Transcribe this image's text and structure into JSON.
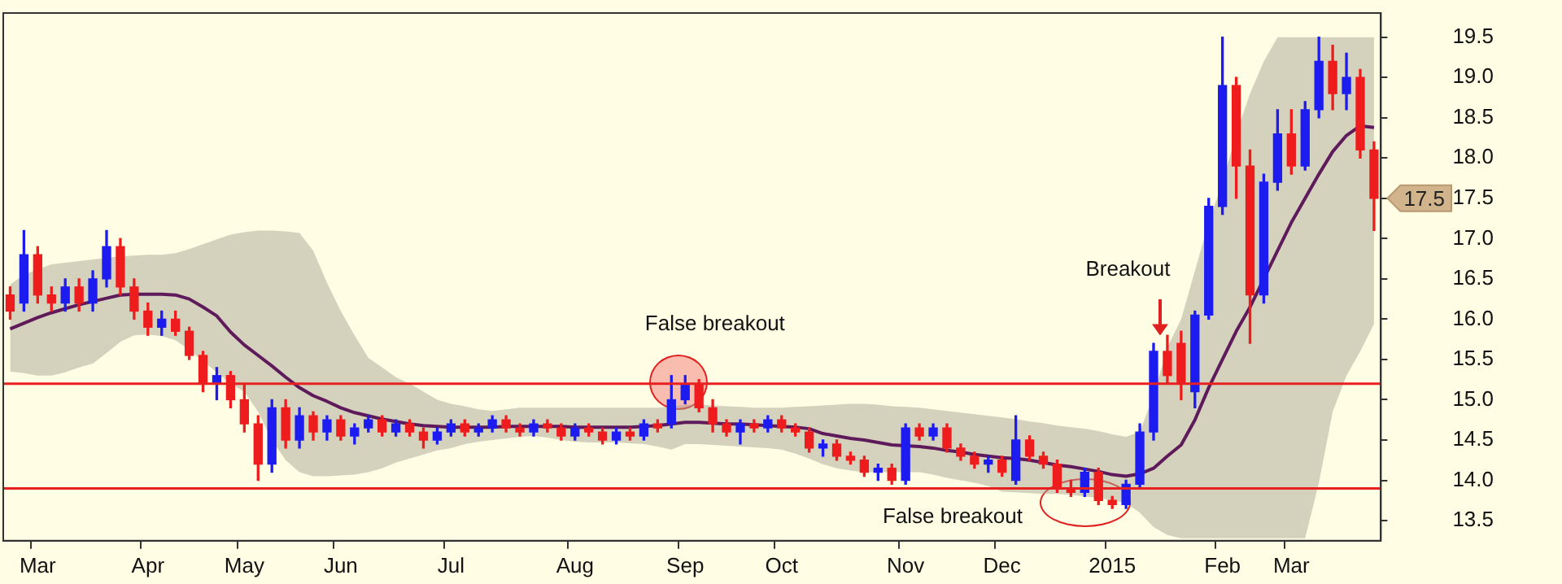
{
  "chart_data": {
    "type": "candlestick",
    "categories": [
      null,
      null,
      "Mar",
      null,
      null,
      null,
      null,
      null,
      null,
      null,
      "Apr",
      null,
      null,
      null,
      null,
      null,
      null,
      "May",
      null,
      null,
      null,
      null,
      null,
      null,
      "Jun",
      null,
      null,
      null,
      null,
      null,
      null,
      null,
      "Jul",
      null,
      null,
      null,
      null,
      null,
      null,
      null,
      null,
      "Aug",
      null,
      null,
      null,
      null,
      null,
      null,
      null,
      "Sep",
      null,
      null,
      null,
      null,
      null,
      null,
      "Oct",
      null,
      null,
      null,
      null,
      null,
      null,
      null,
      null,
      "Nov",
      null,
      null,
      null,
      null,
      null,
      null,
      "Dec",
      null,
      null,
      null,
      null,
      null,
      null,
      null,
      "2015",
      null,
      null,
      null,
      null,
      null,
      null,
      null,
      "Feb",
      null,
      null,
      null,
      null,
      "Mar",
      null,
      null,
      null,
      null,
      null,
      null
    ],
    "ohlc": [
      [
        16.3,
        16.4,
        16.0,
        16.1
      ],
      [
        16.2,
        17.1,
        16.1,
        16.8
      ],
      [
        16.8,
        16.9,
        16.2,
        16.3
      ],
      [
        16.3,
        16.4,
        16.1,
        16.2
      ],
      [
        16.2,
        16.5,
        16.1,
        16.4
      ],
      [
        16.4,
        16.5,
        16.1,
        16.2
      ],
      [
        16.2,
        16.6,
        16.1,
        16.5
      ],
      [
        16.5,
        17.1,
        16.4,
        16.9
      ],
      [
        16.9,
        17.0,
        16.3,
        16.4
      ],
      [
        16.4,
        16.5,
        16.0,
        16.1
      ],
      [
        16.1,
        16.2,
        15.8,
        15.9
      ],
      [
        15.9,
        16.1,
        15.8,
        16.0
      ],
      [
        16.0,
        16.1,
        15.8,
        15.85
      ],
      [
        15.85,
        15.9,
        15.5,
        15.55
      ],
      [
        15.55,
        15.6,
        15.1,
        15.2
      ],
      [
        15.2,
        15.4,
        15.0,
        15.3
      ],
      [
        15.3,
        15.35,
        14.9,
        15.0
      ],
      [
        15.0,
        15.2,
        14.6,
        14.7
      ],
      [
        14.7,
        14.8,
        14.0,
        14.2
      ],
      [
        14.2,
        15.0,
        14.1,
        14.9
      ],
      [
        14.9,
        15.0,
        14.4,
        14.5
      ],
      [
        14.5,
        14.9,
        14.4,
        14.8
      ],
      [
        14.8,
        14.85,
        14.5,
        14.6
      ],
      [
        14.6,
        14.8,
        14.5,
        14.75
      ],
      [
        14.75,
        14.8,
        14.5,
        14.55
      ],
      [
        14.55,
        14.7,
        14.45,
        14.65
      ],
      [
        14.65,
        14.8,
        14.6,
        14.75
      ],
      [
        14.75,
        14.8,
        14.55,
        14.6
      ],
      [
        14.6,
        14.75,
        14.55,
        14.7
      ],
      [
        14.7,
        14.75,
        14.55,
        14.6
      ],
      [
        14.6,
        14.65,
        14.4,
        14.5
      ],
      [
        14.5,
        14.65,
        14.45,
        14.6
      ],
      [
        14.6,
        14.75,
        14.55,
        14.7
      ],
      [
        14.7,
        14.75,
        14.55,
        14.6
      ],
      [
        14.6,
        14.7,
        14.55,
        14.65
      ],
      [
        14.65,
        14.8,
        14.6,
        14.75
      ],
      [
        14.75,
        14.8,
        14.6,
        14.65
      ],
      [
        14.65,
        14.7,
        14.55,
        14.6
      ],
      [
        14.6,
        14.75,
        14.55,
        14.7
      ],
      [
        14.7,
        14.75,
        14.6,
        14.65
      ],
      [
        14.65,
        14.7,
        14.5,
        14.55
      ],
      [
        14.55,
        14.7,
        14.5,
        14.65
      ],
      [
        14.65,
        14.7,
        14.55,
        14.6
      ],
      [
        14.6,
        14.65,
        14.45,
        14.5
      ],
      [
        14.5,
        14.65,
        14.45,
        14.6
      ],
      [
        14.6,
        14.65,
        14.5,
        14.55
      ],
      [
        14.55,
        14.75,
        14.5,
        14.7
      ],
      [
        14.7,
        14.75,
        14.6,
        14.65
      ],
      [
        14.7,
        15.3,
        14.65,
        15.0
      ],
      [
        15.0,
        15.3,
        14.95,
        15.2
      ],
      [
        15.2,
        15.25,
        14.85,
        14.9
      ],
      [
        14.9,
        15.0,
        14.6,
        14.7
      ],
      [
        14.7,
        14.75,
        14.55,
        14.6
      ],
      [
        14.6,
        14.75,
        14.45,
        14.7
      ],
      [
        14.7,
        14.75,
        14.6,
        14.65
      ],
      [
        14.65,
        14.8,
        14.6,
        14.75
      ],
      [
        14.75,
        14.8,
        14.6,
        14.65
      ],
      [
        14.65,
        14.7,
        14.55,
        14.6
      ],
      [
        14.6,
        14.65,
        14.35,
        14.4
      ],
      [
        14.4,
        14.5,
        14.3,
        14.45
      ],
      [
        14.45,
        14.5,
        14.25,
        14.3
      ],
      [
        14.3,
        14.35,
        14.2,
        14.25
      ],
      [
        14.25,
        14.3,
        14.05,
        14.1
      ],
      [
        14.1,
        14.2,
        14.0,
        14.15
      ],
      [
        14.15,
        14.2,
        13.95,
        14.0
      ],
      [
        14.0,
        14.7,
        13.95,
        14.65
      ],
      [
        14.65,
        14.7,
        14.5,
        14.55
      ],
      [
        14.55,
        14.7,
        14.5,
        14.65
      ],
      [
        14.65,
        14.7,
        14.35,
        14.4
      ],
      [
        14.4,
        14.45,
        14.25,
        14.3
      ],
      [
        14.3,
        14.35,
        14.15,
        14.2
      ],
      [
        14.2,
        14.3,
        14.1,
        14.25
      ],
      [
        14.25,
        14.3,
        14.05,
        14.1
      ],
      [
        14.0,
        14.8,
        13.95,
        14.5
      ],
      [
        14.5,
        14.55,
        14.25,
        14.3
      ],
      [
        14.3,
        14.35,
        14.15,
        14.2
      ],
      [
        14.2,
        14.25,
        13.85,
        13.9
      ],
      [
        13.9,
        14.0,
        13.8,
        13.85
      ],
      [
        13.85,
        14.15,
        13.8,
        14.1
      ],
      [
        14.1,
        14.15,
        13.7,
        13.75
      ],
      [
        13.75,
        13.8,
        13.65,
        13.7
      ],
      [
        13.7,
        14.0,
        13.65,
        13.95
      ],
      [
        13.95,
        14.7,
        13.9,
        14.6
      ],
      [
        14.6,
        15.7,
        14.5,
        15.6
      ],
      [
        15.6,
        15.8,
        15.2,
        15.3
      ],
      [
        15.7,
        15.85,
        15.0,
        15.2
      ],
      [
        15.1,
        16.1,
        14.9,
        16.05
      ],
      [
        16.05,
        17.5,
        16.0,
        17.4
      ],
      [
        17.4,
        19.5,
        17.3,
        18.9
      ],
      [
        18.9,
        19.0,
        17.5,
        17.9
      ],
      [
        17.9,
        18.1,
        15.7,
        16.3
      ],
      [
        16.3,
        17.8,
        16.2,
        17.7
      ],
      [
        17.7,
        18.6,
        17.6,
        18.3
      ],
      [
        18.3,
        18.6,
        17.8,
        17.9
      ],
      [
        17.9,
        18.7,
        17.85,
        18.6
      ],
      [
        18.6,
        19.5,
        18.5,
        19.2
      ],
      [
        19.2,
        19.4,
        18.6,
        18.8
      ],
      [
        18.8,
        19.3,
        18.6,
        19.0
      ],
      [
        19.0,
        19.1,
        18.0,
        18.1
      ],
      [
        18.1,
        18.2,
        17.1,
        17.5
      ]
    ],
    "colors": [
      "#ee1c1c",
      "#1c1cf0",
      "#ee1c1c",
      "#ee1c1c",
      "#1c1cf0",
      "#ee1c1c",
      "#1c1cf0",
      "#1c1cf0",
      "#ee1c1c",
      "#ee1c1c",
      "#ee1c1c",
      "#1c1cf0",
      "#ee1c1c",
      "#ee1c1c",
      "#ee1c1c",
      "#1c1cf0",
      "#ee1c1c",
      "#ee1c1c",
      "#ee1c1c",
      "#1c1cf0",
      "#ee1c1c",
      "#1c1cf0",
      "#ee1c1c",
      "#1c1cf0",
      "#ee1c1c",
      "#1c1cf0",
      "#1c1cf0",
      "#ee1c1c",
      "#1c1cf0",
      "#ee1c1c",
      "#ee1c1c",
      "#1c1cf0",
      "#1c1cf0",
      "#ee1c1c",
      "#1c1cf0",
      "#1c1cf0",
      "#ee1c1c",
      "#ee1c1c",
      "#1c1cf0",
      "#ee1c1c",
      "#ee1c1c",
      "#1c1cf0",
      "#ee1c1c",
      "#ee1c1c",
      "#1c1cf0",
      "#ee1c1c",
      "#1c1cf0",
      "#ee1c1c",
      "#1c1cf0",
      "#1c1cf0",
      "#ee1c1c",
      "#ee1c1c",
      "#ee1c1c",
      "#1c1cf0",
      "#ee1c1c",
      "#1c1cf0",
      "#ee1c1c",
      "#ee1c1c",
      "#ee1c1c",
      "#1c1cf0",
      "#ee1c1c",
      "#ee1c1c",
      "#ee1c1c",
      "#1c1cf0",
      "#ee1c1c",
      "#1c1cf0",
      "#ee1c1c",
      "#1c1cf0",
      "#ee1c1c",
      "#ee1c1c",
      "#ee1c1c",
      "#1c1cf0",
      "#ee1c1c",
      "#1c1cf0",
      "#ee1c1c",
      "#ee1c1c",
      "#ee1c1c",
      "#ee1c1c",
      "#1c1cf0",
      "#ee1c1c",
      "#ee1c1c",
      "#1c1cf0",
      "#1c1cf0",
      "#1c1cf0",
      "#ee1c1c",
      "#ee1c1c",
      "#1c1cf0",
      "#1c1cf0",
      "#1c1cf0",
      "#ee1c1c",
      "#ee1c1c",
      "#1c1cf0",
      "#1c1cf0",
      "#ee1c1c",
      "#1c1cf0",
      "#1c1cf0",
      "#ee1c1c",
      "#1c1cf0",
      "#ee1c1c",
      "#ee1c1c"
    ],
    "series": [
      {
        "type": "line",
        "color": "#5e1a5a",
        "values": [
          15.88,
          15.95,
          16.02,
          16.08,
          16.13,
          16.18,
          16.22,
          16.26,
          16.3,
          16.31,
          16.31,
          16.31,
          16.3,
          16.25,
          16.15,
          16.04,
          15.84,
          15.68,
          15.55,
          15.42,
          15.28,
          15.15,
          15.05,
          14.98,
          14.9,
          14.84,
          14.8,
          14.76,
          14.73,
          14.7,
          14.68,
          14.67,
          14.66,
          14.66,
          14.66,
          14.66,
          14.67,
          14.67,
          14.67,
          14.67,
          14.67,
          14.66,
          14.66,
          14.66,
          14.66,
          14.66,
          14.67,
          14.68,
          14.7,
          14.72,
          14.72,
          14.71,
          14.7,
          14.7,
          14.69,
          14.68,
          14.67,
          14.66,
          14.64,
          14.58,
          14.55,
          14.52,
          14.5,
          14.47,
          14.44,
          14.43,
          14.42,
          14.4,
          14.37,
          14.35,
          14.32,
          14.3,
          14.28,
          14.27,
          14.25,
          14.22,
          14.19,
          14.17,
          14.14,
          14.11,
          14.07,
          14.05,
          14.08,
          14.15,
          14.3,
          14.44,
          14.75,
          15.15,
          15.5,
          15.85,
          16.15,
          16.5,
          16.85,
          17.2,
          17.5,
          17.8,
          18.08,
          18.28,
          18.4,
          18.38
        ],
        "upper": [
          16.43,
          16.55,
          16.62,
          16.68,
          16.7,
          16.72,
          16.74,
          16.76,
          16.78,
          16.79,
          16.8,
          16.8,
          16.82,
          16.87,
          16.93,
          16.99,
          17.05,
          17.08,
          17.1,
          17.1,
          17.09,
          17.07,
          16.85,
          16.45,
          16.1,
          15.8,
          15.52,
          15.4,
          15.28,
          15.2,
          15.1,
          15.0,
          14.95,
          14.92,
          14.88,
          14.86,
          14.88,
          14.9,
          14.9,
          14.9,
          14.9,
          14.9,
          14.9,
          14.9,
          14.9,
          14.9,
          14.9,
          14.9,
          14.92,
          14.94,
          14.94,
          14.93,
          14.92,
          14.91,
          14.9,
          14.9,
          14.9,
          14.91,
          14.92,
          14.93,
          14.94,
          14.95,
          14.95,
          14.94,
          14.92,
          14.91,
          14.9,
          14.88,
          14.86,
          14.84,
          14.82,
          14.8,
          14.78,
          14.76,
          14.73,
          14.71,
          14.68,
          14.66,
          14.64,
          14.61,
          14.57,
          14.54,
          14.6,
          15.05,
          15.65,
          16.0,
          16.6,
          17.2,
          17.7,
          18.3,
          18.8,
          19.2,
          19.5,
          19.5,
          19.5,
          19.5,
          19.5,
          19.5,
          19.5,
          19.5
        ],
        "lower": [
          15.35,
          15.33,
          15.3,
          15.3,
          15.34,
          15.4,
          15.45,
          15.58,
          15.72,
          15.8,
          15.81,
          15.79,
          15.74,
          15.62,
          15.48,
          15.34,
          15.2,
          15.1,
          14.85,
          14.5,
          14.25,
          14.1,
          14.05,
          14.05,
          14.06,
          14.07,
          14.1,
          14.15,
          14.22,
          14.27,
          14.32,
          14.37,
          14.4,
          14.45,
          14.48,
          14.5,
          14.52,
          14.54,
          14.55,
          14.53,
          14.5,
          14.48,
          14.47,
          14.47,
          14.47,
          14.46,
          14.45,
          14.42,
          14.38,
          14.45,
          14.45,
          14.44,
          14.43,
          14.42,
          14.41,
          14.4,
          14.38,
          14.33,
          14.27,
          14.2,
          14.15,
          14.12,
          14.1,
          14.1,
          14.1,
          14.1,
          14.1,
          14.07,
          14.03,
          14.0,
          13.97,
          13.93,
          13.86,
          13.85,
          13.84,
          13.83,
          13.83,
          13.82,
          13.8,
          13.78,
          13.75,
          13.72,
          13.6,
          13.42,
          13.32,
          13.28,
          13.28,
          13.28,
          13.28,
          13.28,
          13.28,
          13.28,
          13.28,
          13.28,
          13.28,
          13.97,
          14.85,
          15.3,
          15.6,
          15.94
        ]
      }
    ],
    "ylim": [
      13.25,
      19.8
    ],
    "yticks": [
      13.5,
      {
        "value": 14,
        "label": "14.0"
      },
      14.5,
      {
        "value": 15,
        "label": "15.0"
      },
      15.5,
      {
        "value": 16,
        "label": "16.0"
      },
      16.5,
      {
        "value": 17,
        "label": "17.0"
      },
      17.5,
      {
        "value": 18,
        "label": "18.0"
      },
      18.5,
      {
        "value": 19,
        "label": "19.0"
      },
      19.5
    ],
    "ref_lines": [
      {
        "axis": "y",
        "value": 15.2,
        "color": "#e82020"
      },
      {
        "axis": "y",
        "value": 13.9,
        "color": "#e82020"
      }
    ],
    "annotations": [
      {
        "text": "False breakout",
        "y": 15.25
      },
      "Breakout",
      "False breakout",
      "17.5"
    ]
  }
}
